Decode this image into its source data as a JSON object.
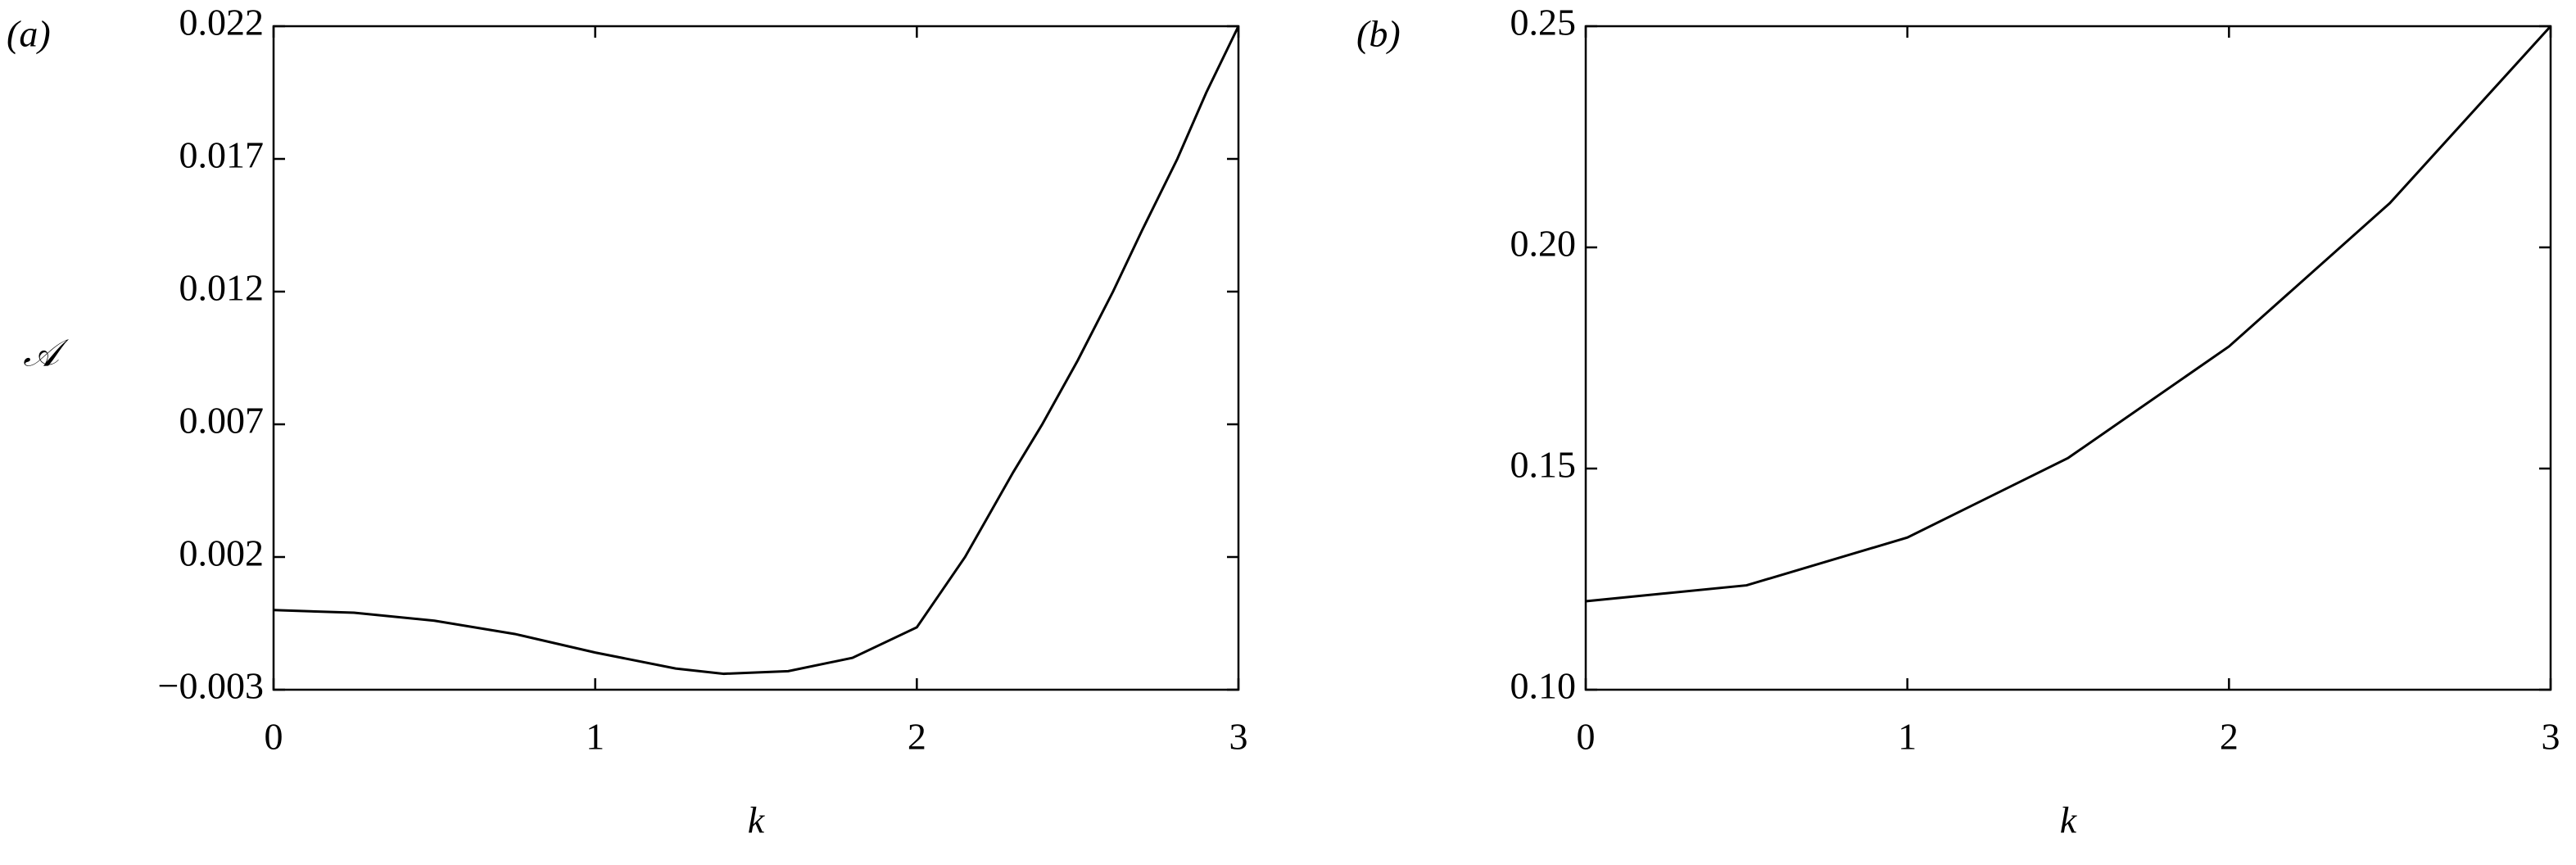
{
  "chart_data": [
    {
      "type": "line",
      "panel_label": "(a)",
      "y_label": "𝒜",
      "x_label": "k",
      "x": [
        0,
        0.25,
        0.5,
        0.75,
        1,
        1.25,
        1.4,
        1.6,
        1.8,
        2,
        2.15,
        2.3,
        2.39,
        2.5,
        2.61,
        2.7,
        2.81,
        2.9,
        3
      ],
      "values": [
        0,
        -0.0001,
        -0.0004,
        -0.0009,
        -0.0016,
        -0.0022,
        -0.0024,
        -0.0023,
        -0.0018,
        -0.00065,
        0.002,
        0.0052,
        0.007,
        0.0094,
        0.012,
        0.0143,
        0.017,
        0.0195,
        0.022
      ],
      "color": "#000000",
      "xlim": [
        0,
        3
      ],
      "xticks": [
        0,
        1,
        2,
        3
      ],
      "ylim": [
        -0.003,
        0.022
      ],
      "yticks": [
        {
          "value": -0.003,
          "label": "−0.003"
        },
        0.002,
        0.007,
        0.012,
        0.017,
        0.022
      ]
    },
    {
      "type": "line",
      "panel_label": "(b)",
      "x_label": "k",
      "x": [
        0,
        0.5,
        1,
        1.5,
        2,
        2.5,
        3
      ],
      "values": [
        0.12,
        0.1236,
        0.1344,
        0.1524,
        0.1776,
        0.21,
        0.25
      ],
      "color": "#000000",
      "xlim": [
        0,
        3
      ],
      "xticks": [
        0,
        1,
        2,
        3
      ],
      "ylim": [
        0.1,
        0.25
      ],
      "yticks": [
        {
          "value": 0.1,
          "label": "0.10"
        },
        0.15,
        {
          "value": 0.2,
          "label": "0.20"
        },
        0.25
      ]
    }
  ]
}
